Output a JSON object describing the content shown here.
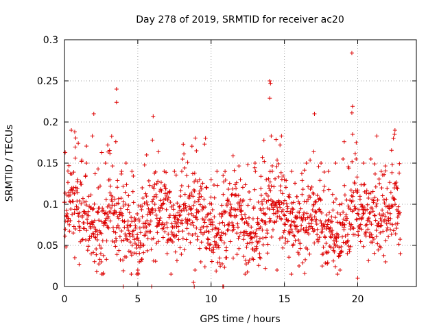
{
  "chart_data": {
    "type": "scatter",
    "title": "Day 278 of 2019, SRMTID for receiver ac20",
    "xlabel": "GPS time / hours",
    "ylabel": "SRMTID / TECUs",
    "xlim": [
      0,
      24
    ],
    "ylim": [
      0,
      0.3
    ],
    "xticks": [
      0,
      5,
      10,
      15,
      20
    ],
    "xtick_labels": [
      "0",
      "5",
      "10",
      "15",
      "20"
    ],
    "yticks": [
      0,
      0.05,
      0.1,
      0.15,
      0.2,
      0.25,
      0.3
    ],
    "ytick_labels": [
      "0",
      "0.05",
      "0.1",
      "0.15",
      "0.2",
      "0.25",
      "0.3"
    ],
    "grid": true,
    "marker": "+",
    "color": "#dd0000",
    "series": [
      {
        "name": "SRMTID",
        "x_range": [
          0,
          22.9
        ],
        "typical_range": [
          0.03,
          0.14
        ],
        "point_count": 1400,
        "points": [
          [
            0.05,
            0.163
          ],
          [
            0.3,
            0.11
          ],
          [
            0.4,
            0.08
          ],
          [
            0.7,
            0.188
          ],
          [
            0.7,
            0.035
          ],
          [
            0.9,
            0.13
          ],
          [
            1.0,
            0.027
          ],
          [
            1.5,
            0.15
          ],
          [
            1.9,
            0.183
          ],
          [
            2.0,
            0.21
          ],
          [
            2.3,
            0.12
          ],
          [
            2.5,
            0.03
          ],
          [
            2.8,
            0.15
          ],
          [
            2.95,
            0.172
          ],
          [
            3.1,
            0.162
          ],
          [
            3.5,
            0.176
          ],
          [
            3.55,
            0.24
          ],
          [
            3.55,
            0.224
          ],
          [
            3.9,
            0.14
          ],
          [
            4.0,
            0.0
          ],
          [
            4.2,
            0.15
          ],
          [
            4.6,
            0.14
          ],
          [
            5.0,
            0.02
          ],
          [
            5.1,
            0.03
          ],
          [
            5.3,
            0.12
          ],
          [
            5.6,
            0.16
          ],
          [
            5.95,
            0.0
          ],
          [
            6.0,
            0.178
          ],
          [
            6.05,
            0.207
          ],
          [
            6.3,
            0.125
          ],
          [
            6.8,
            0.14
          ],
          [
            7.0,
            0.04
          ],
          [
            7.5,
            0.14
          ],
          [
            8.0,
            0.14
          ],
          [
            8.4,
            0.151
          ],
          [
            8.8,
            0.005
          ],
          [
            8.85,
            0.0
          ],
          [
            8.9,
            0.02
          ],
          [
            9.0,
            0.165
          ],
          [
            9.3,
            0.03
          ],
          [
            9.7,
            0.12
          ],
          [
            10.0,
            0.13
          ],
          [
            10.4,
            0.14
          ],
          [
            10.8,
            0.0
          ],
          [
            10.85,
            0.0
          ],
          [
            11.0,
            0.035
          ],
          [
            11.5,
            0.159
          ],
          [
            12.0,
            0.13
          ],
          [
            12.5,
            0.148
          ],
          [
            13.0,
            0.15
          ],
          [
            13.4,
            0.134
          ],
          [
            13.5,
            0.157
          ],
          [
            13.7,
            0.022
          ],
          [
            14.0,
            0.25
          ],
          [
            14.05,
            0.247
          ],
          [
            14.0,
            0.229
          ],
          [
            14.1,
            0.183
          ],
          [
            14.5,
            0.02
          ],
          [
            14.7,
            0.172
          ],
          [
            14.8,
            0.183
          ],
          [
            15.0,
            0.13
          ],
          [
            15.5,
            0.14
          ],
          [
            16.0,
            0.025
          ],
          [
            16.5,
            0.15
          ],
          [
            17.0,
            0.164
          ],
          [
            17.05,
            0.21
          ],
          [
            17.5,
            0.15
          ],
          [
            18.0,
            0.14
          ],
          [
            18.5,
            0.15
          ],
          [
            18.8,
            0.02
          ],
          [
            19.0,
            0.155
          ],
          [
            19.4,
            0.144
          ],
          [
            19.6,
            0.284
          ],
          [
            19.65,
            0.219
          ],
          [
            19.6,
            0.211
          ],
          [
            19.65,
            0.185
          ],
          [
            19.9,
            0.175
          ],
          [
            20.0,
            0.01
          ],
          [
            20.4,
            0.15
          ],
          [
            20.9,
            0.155
          ],
          [
            21.3,
            0.183
          ],
          [
            21.6,
            0.14
          ],
          [
            21.9,
            0.03
          ],
          [
            22.5,
            0.125
          ],
          [
            22.9,
            0.04
          ]
        ]
      }
    ]
  }
}
